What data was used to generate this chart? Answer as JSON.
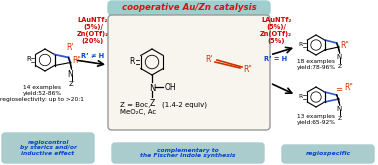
{
  "title": "cooperative Au/Zn catalysis",
  "title_bg": "#9ecece",
  "title_color": "#dd1111",
  "left_catalyst": "LAuNTf₂\n(5%)/\nZn(OTf)₂\n(20%)",
  "right_catalyst": "LAuNTf₂\n(5%)/\nZn(OTf)₂\n(5%)",
  "catalyst_color": "#cc0000",
  "left_condition": "R’ ≠ H",
  "right_condition": "R’ = H",
  "condition_color": "#0044cc",
  "center_z": "Z = Boc,\nMeO₂C, Ac",
  "center_equiv": "(1.4-2 equiv)",
  "left_examples": "14 examples\nyield:52-86%\nregioselectivity: up to >20:1",
  "right_top_examples": "18 examples\nyield:78-96%",
  "right_bot_examples": "13 examples\nyield:65-92%",
  "box_bg": "#f8f4ee",
  "box_border": "#999999",
  "bottom_left_text": "regiocontrol\nby sterics and/or\ninductive effect",
  "bottom_center_text": "complementary to\nthe Fischer Indole synthesis",
  "bottom_right_text": "regiospecific",
  "bottom_bg": "#aacccc",
  "bottom_italic_color": "#0044cc",
  "indole_bond_blue": "#3355cc",
  "r_prime_color": "#cc3300",
  "r_double_prime_color": "#cc3300",
  "alkyne_color": "#cc3300",
  "bg_color": "#ffffff"
}
